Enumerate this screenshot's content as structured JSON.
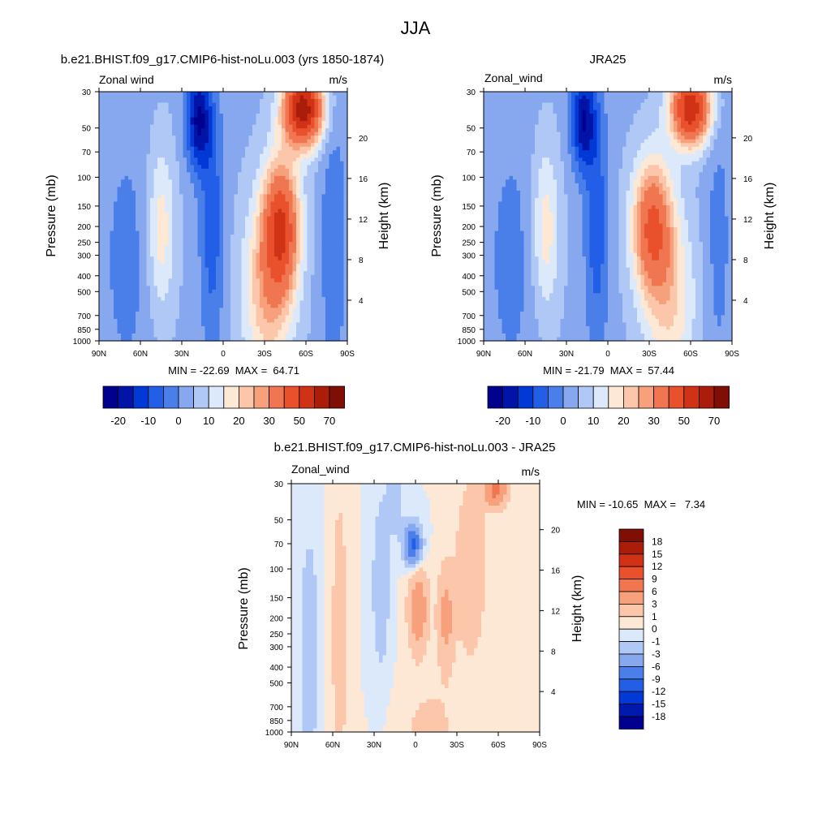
{
  "figure": {
    "title": "JJA"
  },
  "chart_data": [
    {
      "type": "heatmap",
      "title": "b.e21.BHIST.f09_g17.CMIP6-hist-noLu.003 (yrs 1850-1874)",
      "left_label": "Zonal wind",
      "units": "m/s",
      "ylabel": "Pressure (mb)",
      "ylabel_right": "Height (km)",
      "x_ticks": [
        "90N",
        "60N",
        "30N",
        "0",
        "30S",
        "60S",
        "90S"
      ],
      "y_ticks": [
        "30",
        "50",
        "70",
        "100",
        "150",
        "200",
        "250",
        "300",
        "400",
        "500",
        "700",
        "850",
        "1000"
      ],
      "y_right_ticks": [
        "20",
        "16",
        "12",
        "8",
        "4"
      ],
      "xlim": [
        90,
        -90
      ],
      "ylim": [
        1000,
        30
      ],
      "y_scale": "log",
      "stats": "MIN = -22.69  MAX =  64.71",
      "min": -22.69,
      "max": 64.71,
      "legend": {
        "placement": "bottom",
        "labels": [
          "-20",
          "-10",
          "0",
          "10",
          "20",
          "30",
          "50",
          "70"
        ]
      },
      "features": [
        {
          "lat": -58,
          "p": 38,
          "value": 64
        },
        {
          "lat": -42,
          "p": 200,
          "value": 42
        },
        {
          "lat": 45,
          "p": 210,
          "value": 18
        },
        {
          "lat": 18,
          "p": 35,
          "value": -22
        },
        {
          "lat": 8,
          "p": 160,
          "value": -12
        },
        {
          "lat": -45,
          "p": 900,
          "value": 8
        }
      ]
    },
    {
      "type": "heatmap",
      "title": "JRA25",
      "left_label": "Zonal_wind",
      "units": "m/s",
      "ylabel": "Pressure (mb)",
      "ylabel_right": "Height (km)",
      "x_ticks": [
        "90N",
        "60N",
        "30N",
        "0",
        "30S",
        "60S",
        "90S"
      ],
      "y_ticks": [
        "30",
        "50",
        "70",
        "100",
        "150",
        "200",
        "250",
        "300",
        "400",
        "500",
        "700",
        "850",
        "1000"
      ],
      "y_right_ticks": [
        "20",
        "16",
        "12",
        "8",
        "4"
      ],
      "xlim": [
        90,
        -90
      ],
      "ylim": [
        1000,
        30
      ],
      "y_scale": "log",
      "stats": "MIN = -21.79  MAX =  57.44",
      "min": -21.79,
      "max": 57.44,
      "legend": {
        "placement": "bottom",
        "labels": [
          "-20",
          "-10",
          "0",
          "10",
          "20",
          "30",
          "50",
          "70"
        ]
      },
      "features": [
        {
          "lat": -60,
          "p": 38,
          "value": 57
        },
        {
          "lat": -30,
          "p": 200,
          "value": 38
        },
        {
          "lat": 45,
          "p": 210,
          "value": 18
        },
        {
          "lat": 18,
          "p": 35,
          "value": -21
        },
        {
          "lat": 8,
          "p": 160,
          "value": -12
        }
      ]
    },
    {
      "type": "heatmap",
      "title": "b.e21.BHIST.f09_g17.CMIP6-hist-noLu.003 - JRA25",
      "left_label": "Zonal_wind",
      "units": "m/s",
      "ylabel": "Pressure (mb)",
      "ylabel_right": "Height (km)",
      "x_ticks": [
        "90N",
        "60N",
        "30N",
        "0",
        "30S",
        "60S",
        "90S"
      ],
      "y_ticks": [
        "30",
        "50",
        "70",
        "100",
        "150",
        "200",
        "250",
        "300",
        "400",
        "500",
        "700",
        "850",
        "1000"
      ],
      "y_right_ticks": [
        "20",
        "16",
        "12",
        "8",
        "4"
      ],
      "xlim": [
        90,
        -90
      ],
      "ylim": [
        1000,
        30
      ],
      "y_scale": "log",
      "stats": "MIN = -10.65  MAX =   7.34",
      "min": -10.65,
      "max": 7.34,
      "legend": {
        "placement": "right",
        "labels": [
          "-18",
          "-15",
          "-12",
          "-9",
          "-6",
          "-3",
          "-1",
          "0",
          "1",
          "3",
          "6",
          "9",
          "12",
          "15",
          "18"
        ]
      },
      "features": [
        {
          "lat": 2,
          "p": 72,
          "value": -10
        },
        {
          "lat": -58,
          "p": 32,
          "value": 7
        },
        {
          "lat": -2,
          "p": 170,
          "value": 5
        },
        {
          "lat": -22,
          "p": 200,
          "value": 4
        },
        {
          "lat": -40,
          "p": 100,
          "value": 3
        },
        {
          "lat": 77,
          "p": 300,
          "value": -3
        }
      ]
    }
  ],
  "colors": {
    "main_scale": [
      "#00008f",
      "#0015a8",
      "#0039d5",
      "#235fe6",
      "#4a7fe9",
      "#87a8ef",
      "#b0c8f6",
      "#dce9fb",
      "#fde8d6",
      "#fcc6aa",
      "#f7a07c",
      "#ef7650",
      "#e9502c",
      "#cf3215",
      "#aa1d0a",
      "#7f0f05"
    ],
    "diff_scale": [
      "#00008f",
      "#0019ad",
      "#0039d5",
      "#235fe6",
      "#4a7fe9",
      "#87a8ef",
      "#b0c8f6",
      "#dce9fb",
      "#fde8d6",
      "#fcc6aa",
      "#f7a07c",
      "#ef7650",
      "#e9502c",
      "#cf3215",
      "#aa1d0a",
      "#7f0f05"
    ]
  }
}
